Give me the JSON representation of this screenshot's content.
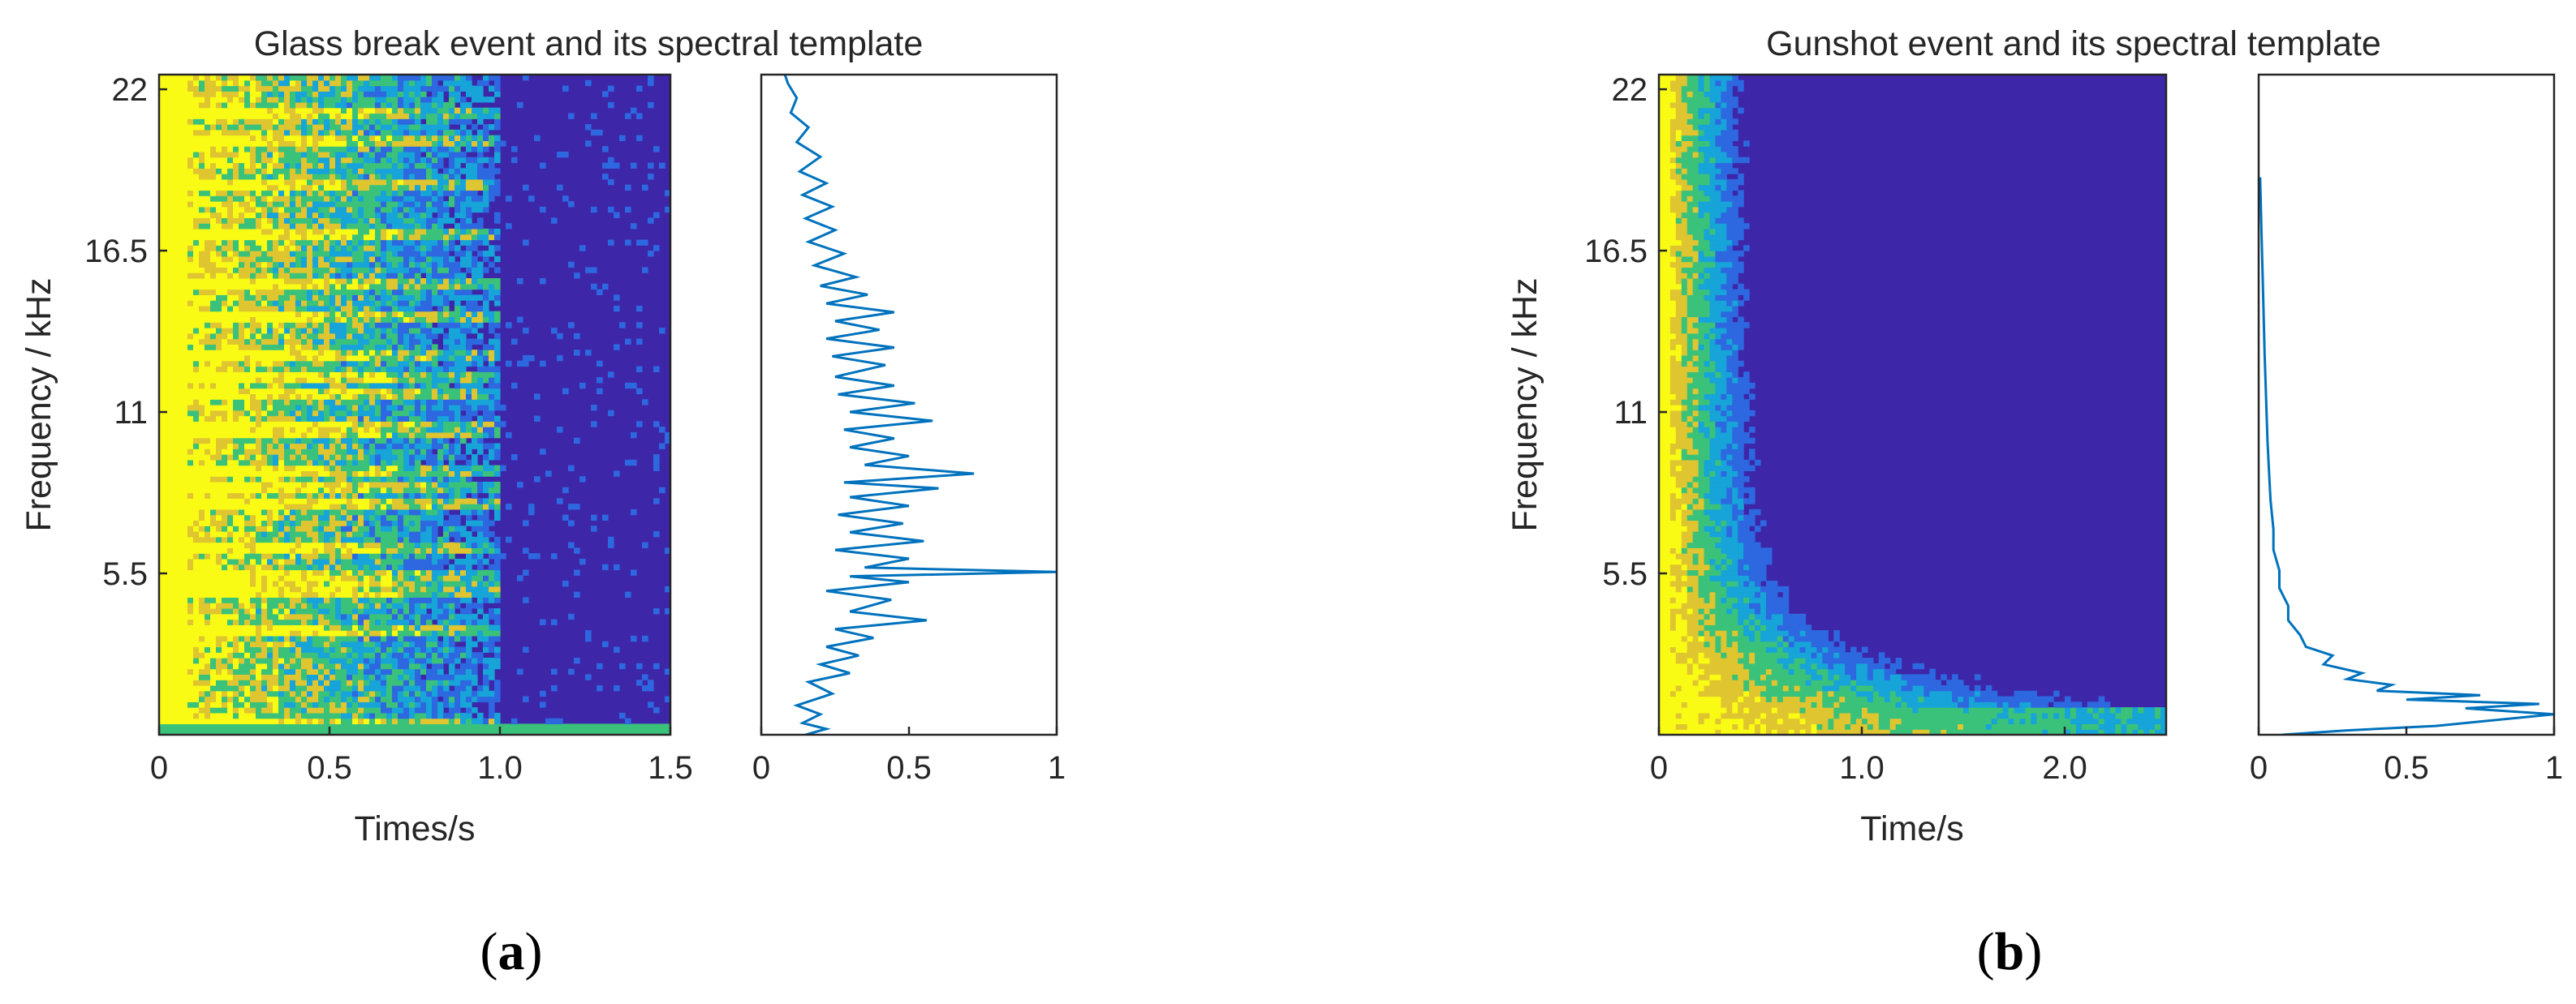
{
  "chart_data": [
    {
      "type": "heatmap",
      "panel": "a",
      "title": "Glass break event and its spectral template",
      "spectrogram": {
        "xlabel": "Times/s",
        "ylabel": "Frequency / kHz",
        "xlim": [
          0,
          1.5
        ],
        "ylim": [
          0,
          22.5
        ],
        "x_ticks": [
          "0",
          "0.5",
          "1.0",
          "1.5"
        ],
        "x_tick_values": [
          0,
          0.5,
          1.0,
          1.5
        ],
        "y_ticks": [
          "5.5",
          "11",
          "16.5",
          "22"
        ],
        "y_tick_values": [
          5.5,
          11,
          16.5,
          22
        ],
        "colormap": [
          "#3e26a8",
          "#2d68e0",
          "#17a4d8",
          "#3bc27a",
          "#dfc530",
          "#f9fb14"
        ],
        "decay": "slow",
        "event_end_s": 1.0,
        "bright_bands_khz": [
          0.3,
          3.6,
          4.9,
          5.2,
          5.5,
          6.4,
          7.8,
          8.4,
          9.0,
          10.4,
          11.6,
          12.2,
          13.0,
          14.2,
          15.3,
          17.0,
          18.7,
          20.3,
          21.2
        ]
      },
      "template": {
        "type": "line",
        "xlim": [
          0,
          1
        ],
        "x_ticks": [
          "0",
          "0.5",
          "1"
        ],
        "x_tick_values": [
          0,
          0.5,
          1
        ],
        "color": "#0072bd",
        "points": [
          [
            0.15,
            0.0
          ],
          [
            0.22,
            0.2
          ],
          [
            0.14,
            0.4
          ],
          [
            0.2,
            0.7
          ],
          [
            0.12,
            1.0
          ],
          [
            0.24,
            1.4
          ],
          [
            0.16,
            1.8
          ],
          [
            0.3,
            2.1
          ],
          [
            0.2,
            2.4
          ],
          [
            0.33,
            2.7
          ],
          [
            0.22,
            3.0
          ],
          [
            0.38,
            3.3
          ],
          [
            0.25,
            3.6
          ],
          [
            0.56,
            3.9
          ],
          [
            0.3,
            4.2
          ],
          [
            0.44,
            4.6
          ],
          [
            0.22,
            4.9
          ],
          [
            0.5,
            5.2
          ],
          [
            0.3,
            5.4
          ],
          [
            1.0,
            5.55
          ],
          [
            0.35,
            5.7
          ],
          [
            0.5,
            6.0
          ],
          [
            0.25,
            6.3
          ],
          [
            0.55,
            6.6
          ],
          [
            0.3,
            6.9
          ],
          [
            0.48,
            7.2
          ],
          [
            0.26,
            7.5
          ],
          [
            0.5,
            7.8
          ],
          [
            0.3,
            8.1
          ],
          [
            0.6,
            8.4
          ],
          [
            0.28,
            8.6
          ],
          [
            0.72,
            8.9
          ],
          [
            0.35,
            9.2
          ],
          [
            0.5,
            9.5
          ],
          [
            0.3,
            9.8
          ],
          [
            0.45,
            10.1
          ],
          [
            0.28,
            10.4
          ],
          [
            0.58,
            10.7
          ],
          [
            0.3,
            11.0
          ],
          [
            0.52,
            11.3
          ],
          [
            0.26,
            11.6
          ],
          [
            0.45,
            11.9
          ],
          [
            0.25,
            12.2
          ],
          [
            0.42,
            12.6
          ],
          [
            0.24,
            12.9
          ],
          [
            0.45,
            13.2
          ],
          [
            0.22,
            13.5
          ],
          [
            0.4,
            13.8
          ],
          [
            0.25,
            14.1
          ],
          [
            0.45,
            14.4
          ],
          [
            0.22,
            14.7
          ],
          [
            0.36,
            15.0
          ],
          [
            0.2,
            15.3
          ],
          [
            0.32,
            15.6
          ],
          [
            0.18,
            16.0
          ],
          [
            0.28,
            16.4
          ],
          [
            0.16,
            16.8
          ],
          [
            0.25,
            17.2
          ],
          [
            0.15,
            17.6
          ],
          [
            0.24,
            18.0
          ],
          [
            0.14,
            18.4
          ],
          [
            0.22,
            18.8
          ],
          [
            0.13,
            19.2
          ],
          [
            0.2,
            19.7
          ],
          [
            0.12,
            20.2
          ],
          [
            0.16,
            20.7
          ],
          [
            0.1,
            21.2
          ],
          [
            0.12,
            21.7
          ],
          [
            0.09,
            22.2
          ],
          [
            0.08,
            22.5
          ]
        ]
      }
    },
    {
      "type": "heatmap",
      "panel": "b",
      "title": "Gunshot event and its spectral template",
      "spectrogram": {
        "xlabel": "Time/s",
        "ylabel": "Frequency / kHz",
        "xlim": [
          0,
          2.5
        ],
        "ylim": [
          0,
          22.5
        ],
        "x_ticks": [
          "0",
          "1.0",
          "2.0"
        ],
        "x_tick_values": [
          0,
          1.0,
          2.0
        ],
        "y_ticks": [
          "5.5",
          "11",
          "16.5",
          "22"
        ],
        "y_tick_values": [
          5.5,
          11,
          16.5,
          22
        ],
        "colormap": [
          "#3e26a8",
          "#2d68e0",
          "#17a4d8",
          "#3bc27a",
          "#dfc530",
          "#f9fb14"
        ],
        "decay": "fast",
        "energy_floor_khz": 1.0
      },
      "template": {
        "type": "line",
        "xlim": [
          0,
          1
        ],
        "x_ticks": [
          "0",
          "0.5",
          "1"
        ],
        "x_tick_values": [
          0,
          0.5,
          1
        ],
        "color": "#0072bd",
        "points": [
          [
            0.08,
            0.0
          ],
          [
            0.3,
            0.15
          ],
          [
            0.6,
            0.3
          ],
          [
            1.0,
            0.7
          ],
          [
            0.7,
            0.9
          ],
          [
            0.95,
            1.05
          ],
          [
            0.5,
            1.2
          ],
          [
            0.75,
            1.35
          ],
          [
            0.4,
            1.5
          ],
          [
            0.45,
            1.7
          ],
          [
            0.3,
            1.9
          ],
          [
            0.35,
            2.1
          ],
          [
            0.22,
            2.4
          ],
          [
            0.25,
            2.7
          ],
          [
            0.16,
            3.0
          ],
          [
            0.14,
            3.4
          ],
          [
            0.1,
            3.9
          ],
          [
            0.1,
            4.4
          ],
          [
            0.07,
            5.0
          ],
          [
            0.07,
            5.6
          ],
          [
            0.05,
            6.3
          ],
          [
            0.05,
            7.0
          ],
          [
            0.04,
            8.0
          ],
          [
            0.035,
            9.0
          ],
          [
            0.03,
            10.0
          ],
          [
            0.025,
            11.5
          ],
          [
            0.02,
            13.0
          ],
          [
            0.015,
            15.0
          ],
          [
            0.01,
            17.0
          ],
          [
            0.005,
            19.0
          ]
        ]
      }
    }
  ],
  "panel_labels": [
    {
      "open": "(",
      "letter": "a",
      "close": ")"
    },
    {
      "open": "(",
      "letter": "b",
      "close": ")"
    }
  ]
}
